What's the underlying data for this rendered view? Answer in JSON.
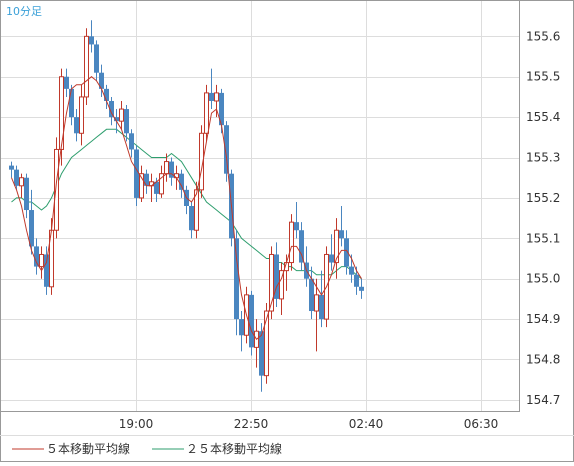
{
  "timeframe_label": "10分足",
  "legend": {
    "ma5_label": "５本移動平均線",
    "ma25_label": "２５本移動平均線"
  },
  "colors": {
    "candle": "#4a86c0",
    "ma5": "#c0392b",
    "ma25": "#2e9e6e",
    "grid": "#dddddd",
    "frame": "#999999"
  },
  "chart_data": {
    "type": "candlestick",
    "y_ticks": [
      155.6,
      155.5,
      155.4,
      155.3,
      155.2,
      155.1,
      155.0,
      154.9,
      154.8,
      154.7
    ],
    "ylim": [
      154.67,
      155.69
    ],
    "x_ticks": [
      {
        "label": "19:00",
        "index": 25
      },
      {
        "label": "22:50",
        "index": 48
      },
      {
        "label": "02:40",
        "index": 71
      },
      {
        "label": "06:30",
        "index": 94
      }
    ],
    "candles": [
      [
        155.28,
        155.29,
        155.25,
        155.27
      ],
      [
        155.27,
        155.28,
        155.22,
        155.23
      ],
      [
        155.23,
        155.26,
        155.2,
        155.25
      ],
      [
        155.25,
        155.26,
        155.15,
        155.17
      ],
      [
        155.17,
        155.22,
        155.06,
        155.08
      ],
      [
        155.08,
        155.1,
        155.01,
        155.03
      ],
      [
        155.03,
        155.08,
        155.0,
        155.06
      ],
      [
        155.06,
        155.08,
        154.96,
        154.98
      ],
      [
        154.98,
        155.15,
        154.96,
        155.12
      ],
      [
        155.12,
        155.35,
        155.1,
        155.32
      ],
      [
        155.32,
        155.52,
        155.28,
        155.5
      ],
      [
        155.5,
        155.52,
        155.45,
        155.47
      ],
      [
        155.47,
        155.48,
        155.38,
        155.4
      ],
      [
        155.4,
        155.42,
        155.34,
        155.36
      ],
      [
        155.36,
        155.48,
        155.33,
        155.45
      ],
      [
        155.45,
        155.62,
        155.43,
        155.6
      ],
      [
        155.6,
        155.64,
        155.56,
        155.58
      ],
      [
        155.58,
        155.59,
        155.49,
        155.51
      ],
      [
        155.51,
        155.53,
        155.45,
        155.47
      ],
      [
        155.47,
        155.48,
        155.42,
        155.44
      ],
      [
        155.44,
        155.45,
        155.38,
        155.4
      ],
      [
        155.4,
        155.42,
        155.36,
        155.39
      ],
      [
        155.39,
        155.44,
        155.37,
        155.42
      ],
      [
        155.42,
        155.43,
        155.34,
        155.36
      ],
      [
        155.36,
        155.37,
        155.3,
        155.32
      ],
      [
        155.32,
        155.33,
        155.18,
        155.2
      ],
      [
        155.2,
        155.28,
        155.19,
        155.26
      ],
      [
        155.26,
        155.27,
        155.21,
        155.23
      ],
      [
        155.23,
        155.26,
        155.19,
        155.24
      ],
      [
        155.24,
        155.25,
        155.19,
        155.21
      ],
      [
        155.21,
        155.28,
        155.2,
        155.26
      ],
      [
        155.26,
        155.31,
        155.24,
        155.29
      ],
      [
        155.29,
        155.3,
        155.23,
        155.25
      ],
      [
        155.25,
        155.28,
        155.22,
        155.26
      ],
      [
        155.26,
        155.27,
        155.2,
        155.22
      ],
      [
        155.22,
        155.23,
        155.16,
        155.18
      ],
      [
        155.18,
        155.19,
        155.1,
        155.12
      ],
      [
        155.12,
        155.24,
        155.1,
        155.22
      ],
      [
        155.22,
        155.38,
        155.2,
        155.36
      ],
      [
        155.36,
        155.48,
        155.34,
        155.46
      ],
      [
        155.46,
        155.52,
        155.42,
        155.44
      ],
      [
        155.44,
        155.48,
        155.4,
        155.46
      ],
      [
        155.46,
        155.47,
        155.36,
        155.38
      ],
      [
        155.38,
        155.39,
        155.24,
        155.26
      ],
      [
        155.26,
        155.27,
        155.08,
        155.1
      ],
      [
        155.1,
        155.12,
        154.86,
        154.9
      ],
      [
        154.9,
        154.92,
        154.82,
        154.86
      ],
      [
        154.86,
        154.98,
        154.84,
        154.96
      ],
      [
        154.96,
        154.97,
        154.81,
        154.83
      ],
      [
        154.83,
        154.9,
        154.78,
        154.87
      ],
      [
        154.87,
        154.89,
        154.72,
        154.76
      ],
      [
        154.76,
        154.94,
        154.74,
        154.92
      ],
      [
        154.92,
        155.08,
        154.9,
        155.06
      ],
      [
        155.06,
        155.09,
        154.93,
        154.95
      ],
      [
        154.95,
        155.04,
        154.91,
        155.02
      ],
      [
        155.02,
        155.06,
        154.97,
        155.04
      ],
      [
        155.04,
        155.16,
        155.02,
        155.14
      ],
      [
        155.14,
        155.19,
        155.1,
        155.12
      ],
      [
        155.12,
        155.14,
        155.02,
        155.04
      ],
      [
        155.04,
        155.08,
        154.98,
        155.0
      ],
      [
        155.0,
        155.03,
        154.9,
        154.92
      ],
      [
        154.92,
        155.0,
        154.82,
        154.96
      ],
      [
        154.96,
        155.02,
        154.88,
        154.9
      ],
      [
        154.9,
        155.08,
        154.88,
        155.06
      ],
      [
        155.06,
        155.11,
        155.02,
        155.04
      ],
      [
        155.04,
        155.15,
        155.0,
        155.12
      ],
      [
        155.12,
        155.18,
        155.08,
        155.1
      ],
      [
        155.1,
        155.12,
        155.01,
        155.03
      ],
      [
        155.03,
        155.06,
        154.99,
        155.01
      ],
      [
        155.01,
        155.03,
        154.96,
        154.98
      ],
      [
        154.98,
        155.0,
        154.95,
        154.97
      ]
    ],
    "ma5": [
      155.25,
      155.22,
      155.18,
      155.12,
      155.07,
      155.04,
      155.02,
      155.04,
      155.12,
      155.24,
      155.33,
      155.41,
      155.47,
      155.48,
      155.48,
      155.49,
      155.5,
      155.49,
      155.47,
      155.44,
      155.41,
      155.39,
      155.37,
      155.33,
      155.29,
      155.27,
      155.25,
      155.23,
      155.23,
      155.24,
      155.25,
      155.26,
      155.26,
      155.25,
      155.23,
      155.2,
      155.19,
      155.21,
      155.27,
      155.34,
      155.41,
      155.42,
      155.38,
      155.3,
      155.18,
      155.05,
      154.96,
      154.91,
      154.87,
      154.85,
      154.86,
      154.9,
      154.94,
      154.98,
      155.0,
      155.04,
      155.08,
      155.08,
      155.06,
      155.02,
      155.0,
      154.98,
      154.96,
      154.98,
      155.01,
      155.05,
      155.07,
      155.07,
      155.05,
      155.02,
      155.0
    ],
    "ma25": [
      155.19,
      155.2,
      155.2,
      155.19,
      155.19,
      155.18,
      155.17,
      155.18,
      155.2,
      155.23,
      155.26,
      155.28,
      155.3,
      155.31,
      155.32,
      155.33,
      155.34,
      155.35,
      155.36,
      155.37,
      155.37,
      155.37,
      155.36,
      155.35,
      155.34,
      155.33,
      155.32,
      155.31,
      155.3,
      155.3,
      155.3,
      155.3,
      155.31,
      155.3,
      155.29,
      155.27,
      155.25,
      155.23,
      155.21,
      155.19,
      155.18,
      155.17,
      155.16,
      155.15,
      155.14,
      155.12,
      155.1,
      155.09,
      155.08,
      155.07,
      155.06,
      155.05,
      155.05,
      155.04,
      155.04,
      155.03,
      155.03,
      155.02,
      155.02,
      155.02,
      155.02,
      155.01,
      155.01,
      155.01,
      155.01,
      155.02,
      155.03,
      155.03,
      155.02,
      155.01,
      155.0
    ]
  }
}
